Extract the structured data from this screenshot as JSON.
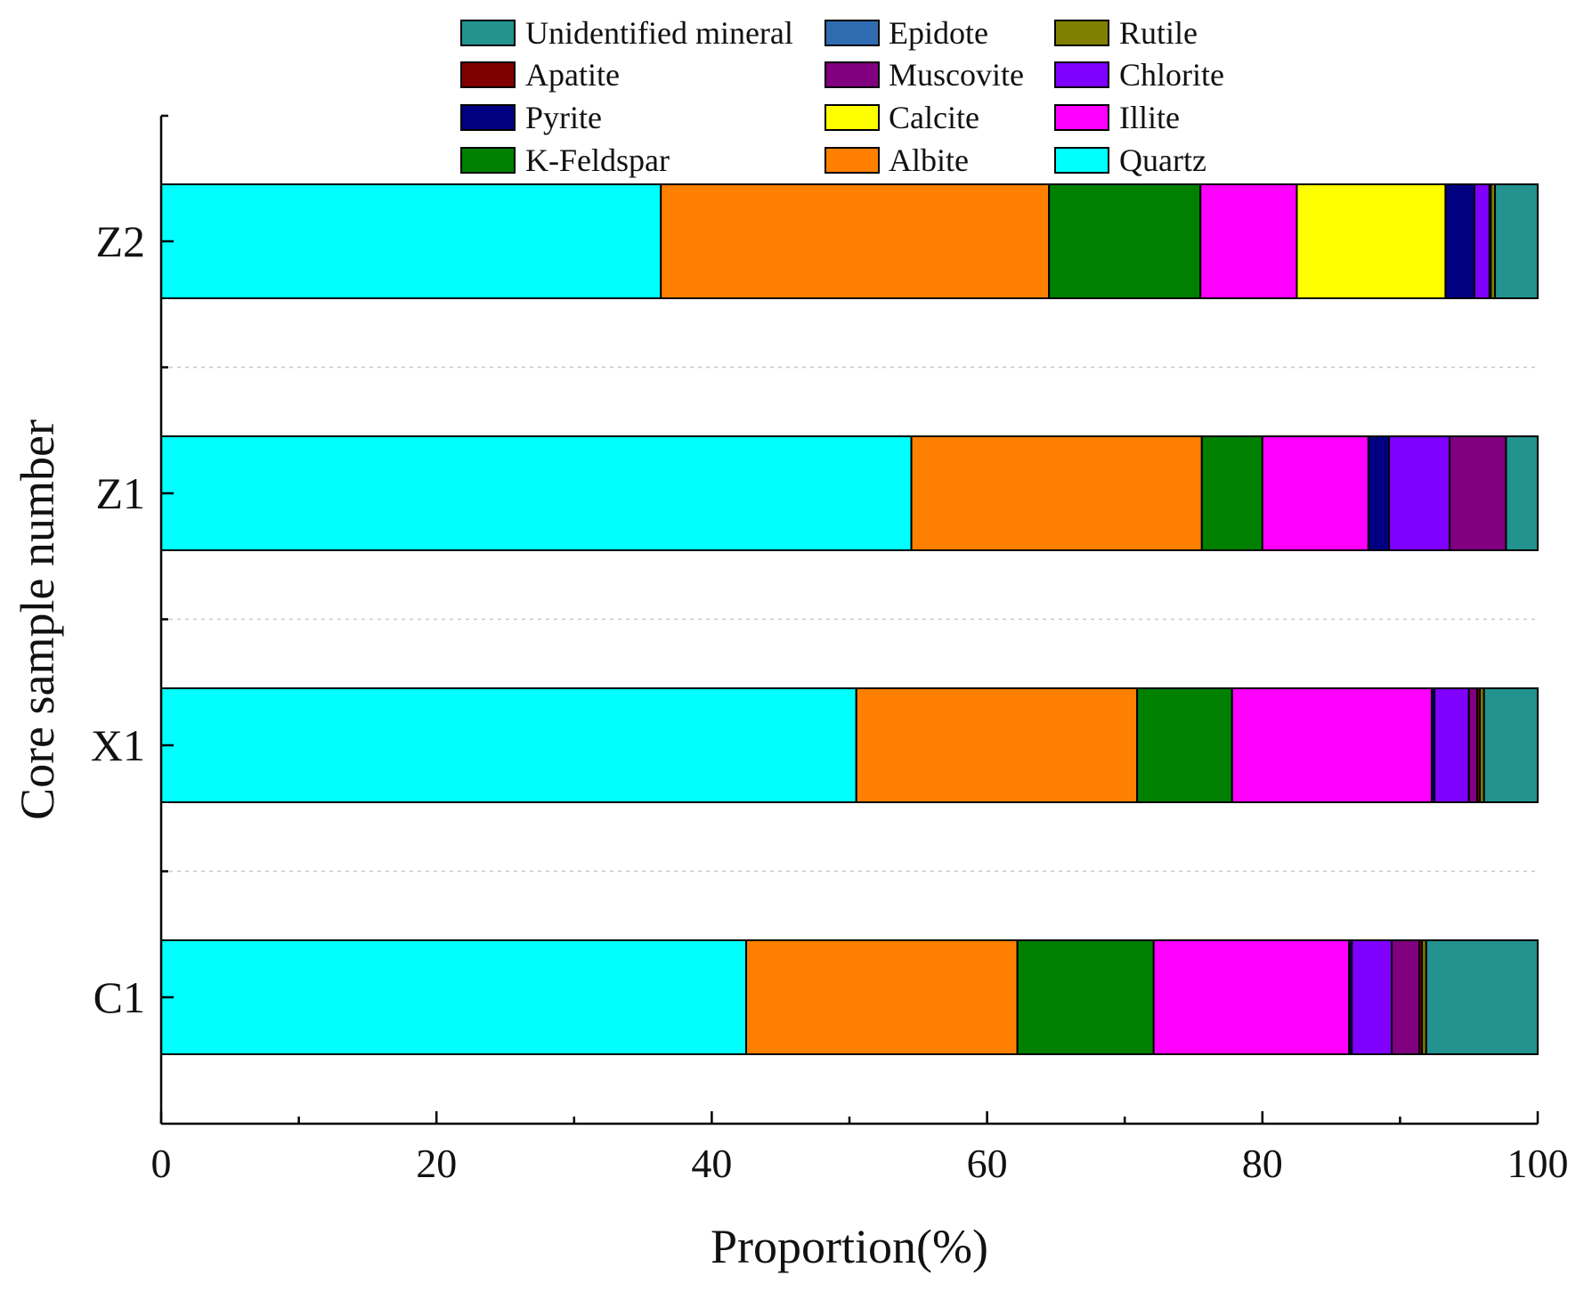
{
  "chart_data": {
    "type": "bar",
    "orientation": "horizontal",
    "stacked": true,
    "title": "",
    "xlabel": "Proportion(%)",
    "ylabel": "Core sample number",
    "xlim": [
      0,
      100
    ],
    "xticks": [
      0,
      20,
      40,
      60,
      80,
      100
    ],
    "xtick_labels": [
      "0",
      "20",
      "40",
      "60",
      "80",
      "100"
    ],
    "grid": "horizontal dotted separators",
    "legend_position": "top",
    "categories": [
      "Z2",
      "Z1",
      "X1",
      "C1"
    ],
    "series": [
      {
        "name": "Quartz",
        "color": "#00FFFF",
        "values": [
          36.3,
          54.5,
          50.5,
          42.5
        ]
      },
      {
        "name": "Albite",
        "color": "#FF8000",
        "values": [
          28.2,
          21.1,
          20.4,
          19.7
        ]
      },
      {
        "name": "K-Feldspar",
        "color": "#008000",
        "values": [
          11.0,
          4.4,
          6.9,
          9.9
        ]
      },
      {
        "name": "Illite",
        "color": "#FF00FF",
        "values": [
          7.0,
          7.7,
          14.5,
          14.2
        ]
      },
      {
        "name": "Calcite",
        "color": "#FFFF00",
        "values": [
          10.8,
          0.0,
          0.0,
          0.0
        ]
      },
      {
        "name": "Pyrite",
        "color": "#000080",
        "values": [
          2.1,
          1.5,
          0.2,
          0.2
        ]
      },
      {
        "name": "Chlorite",
        "color": "#8000FF",
        "values": [
          1.1,
          4.4,
          2.5,
          2.9
        ]
      },
      {
        "name": "Muscovite",
        "color": "#800080",
        "values": [
          0.0,
          4.1,
          0.6,
          2.0
        ]
      },
      {
        "name": "Apatite",
        "color": "#800000",
        "values": [
          0.1,
          0.0,
          0.2,
          0.2
        ]
      },
      {
        "name": "Rutile",
        "color": "#808000",
        "values": [
          0.3,
          0.0,
          0.3,
          0.3
        ]
      },
      {
        "name": "Epidote",
        "color": "#2F6CB0",
        "values": [
          0.0,
          0.0,
          0.0,
          0.0
        ]
      },
      {
        "name": "Unidentified mineral",
        "color": "#22938F",
        "values": [
          3.1,
          2.3,
          3.9,
          8.1
        ]
      }
    ],
    "legend": [
      [
        "Unidentified mineral",
        "Epidote",
        "Rutile"
      ],
      [
        "Apatite",
        "Muscovite",
        "Chlorite"
      ],
      [
        "Pyrite",
        "Calcite",
        "Illite"
      ],
      [
        "K-Feldspar",
        "Albite",
        "Quartz"
      ]
    ]
  }
}
